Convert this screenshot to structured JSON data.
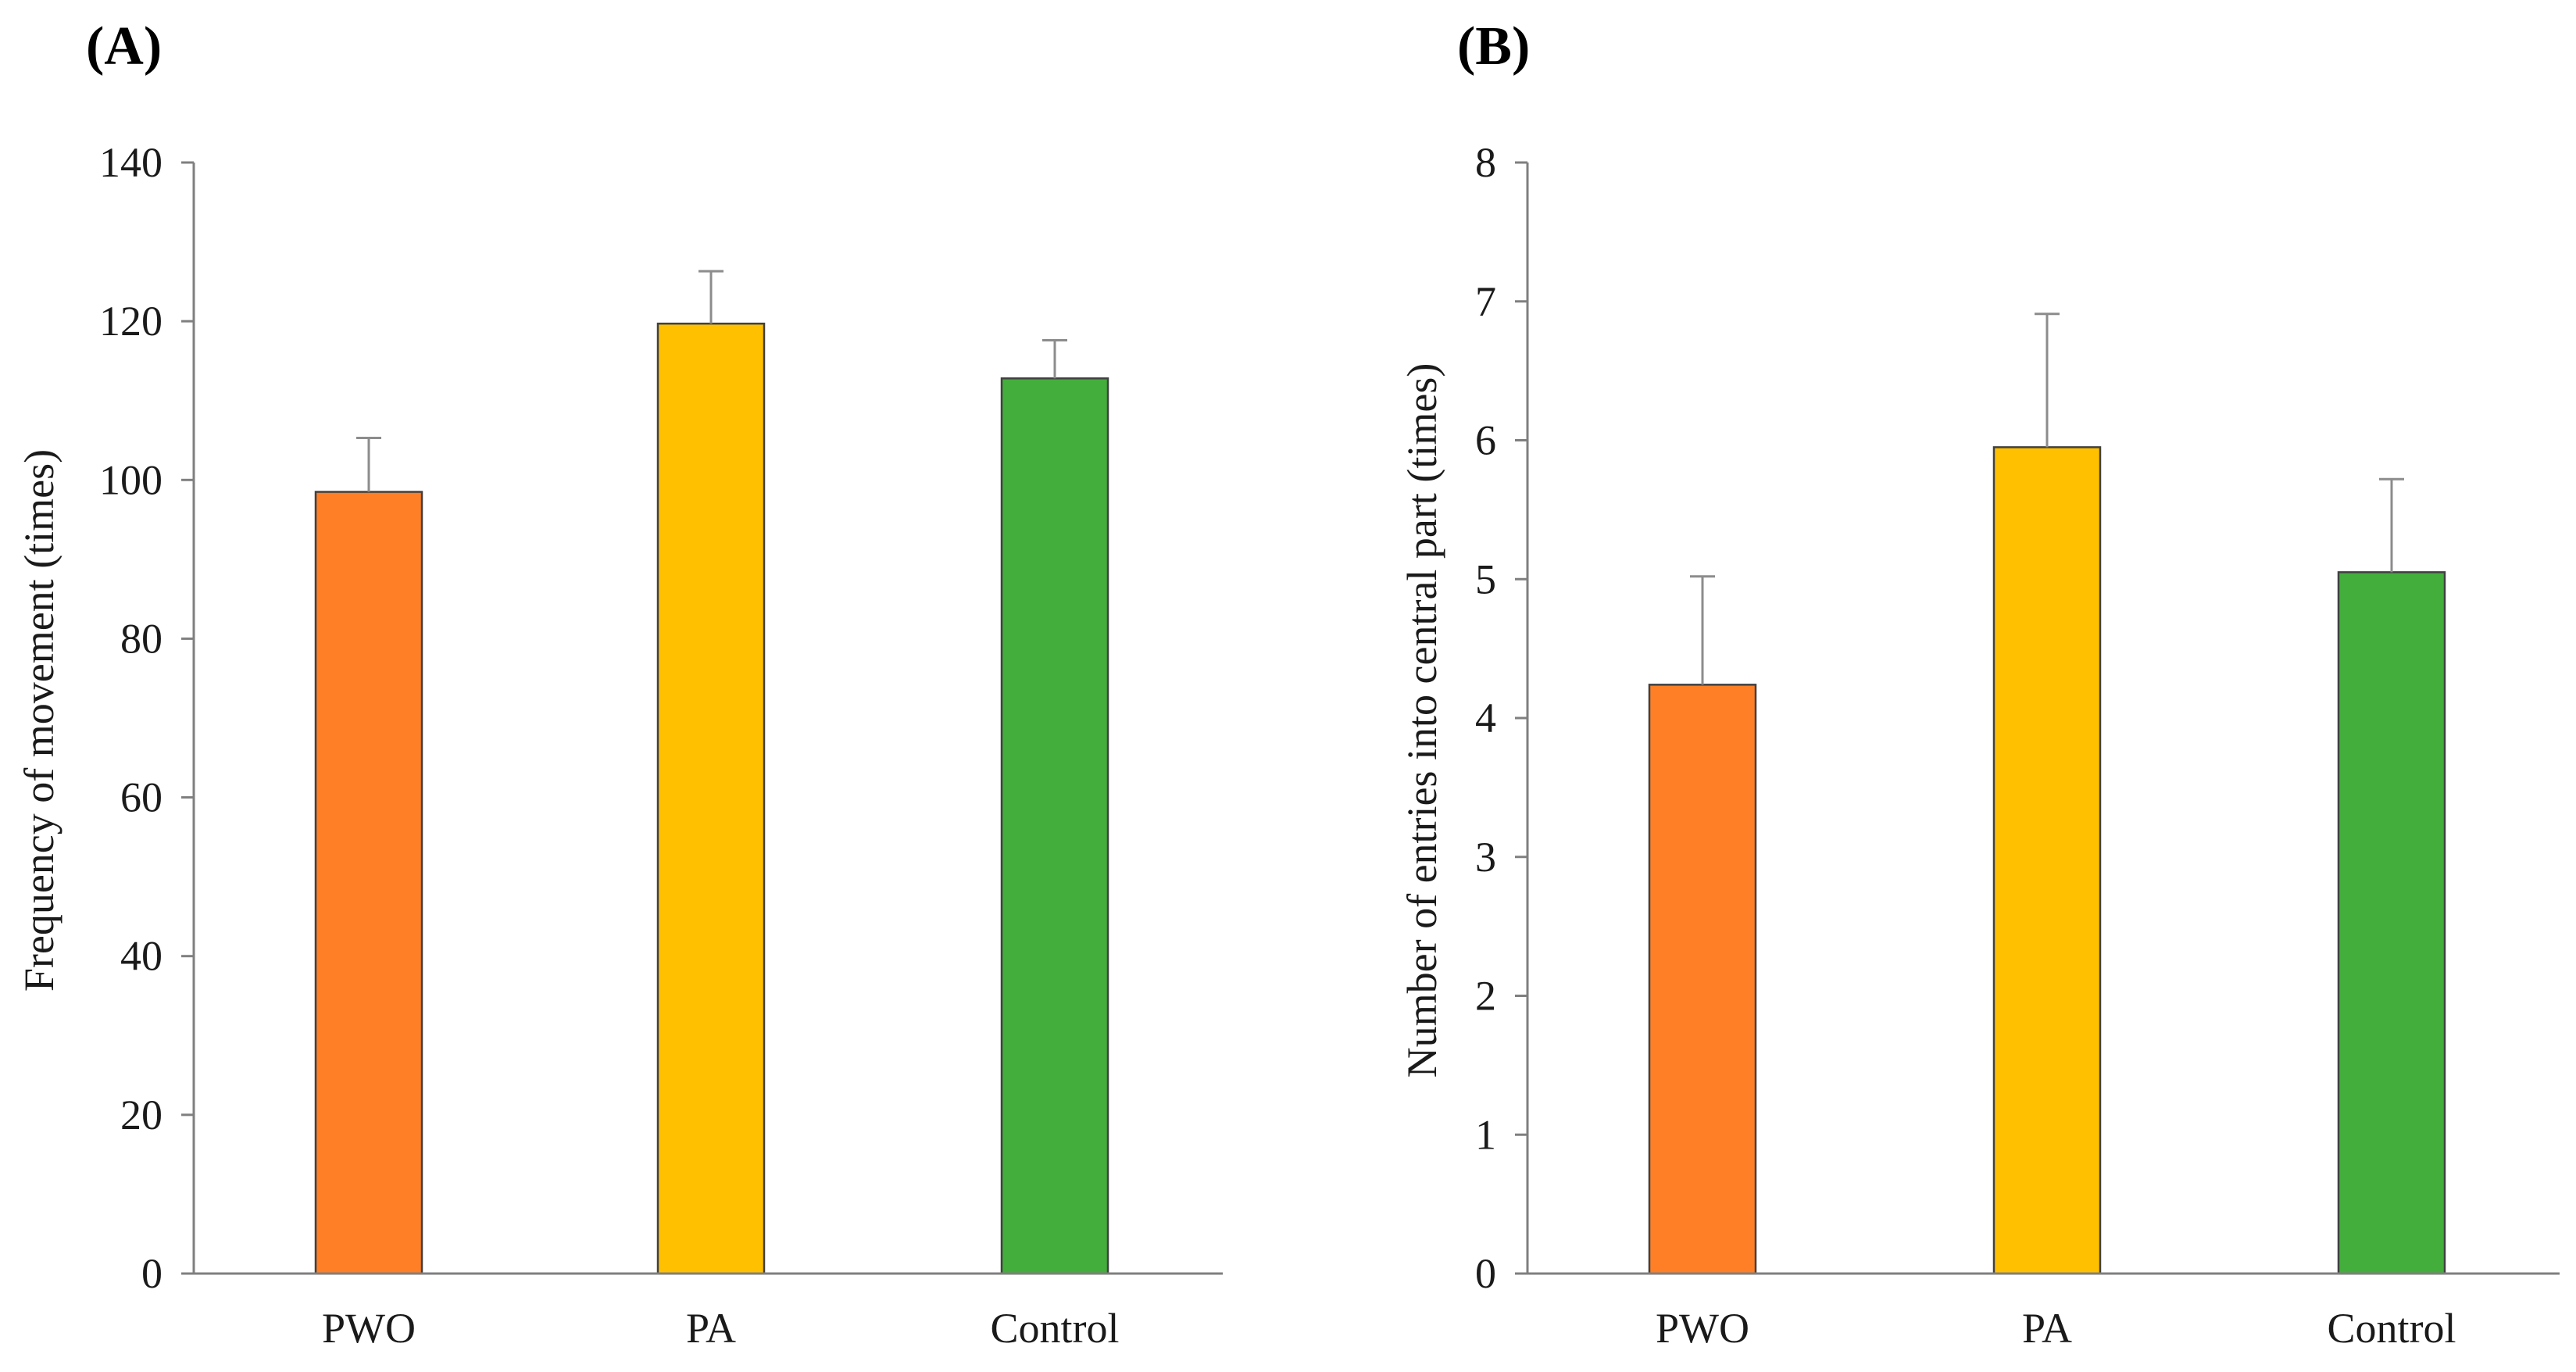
{
  "chart_data": [
    {
      "type": "bar",
      "panel_label": "(A)",
      "categories": [
        "PWO",
        "PA",
        "Control"
      ],
      "values": [
        98.5,
        119.7,
        112.8
      ],
      "errors": [
        6.8,
        6.6,
        4.8
      ],
      "colors": [
        "#ff7f27",
        "#ffc000",
        "#43ae3b"
      ],
      "ylabel": "Frequency of movement (times)",
      "xlabel": "",
      "ylim": [
        0,
        140
      ],
      "yticks": [
        "0",
        "20",
        "40",
        "60",
        "80",
        "100",
        "120",
        "140"
      ],
      "grid": false
    },
    {
      "type": "bar",
      "panel_label": "(B)",
      "categories": [
        "PWO",
        "PA",
        "Control"
      ],
      "values": [
        4.24,
        5.95,
        5.05
      ],
      "errors": [
        0.78,
        0.96,
        0.67
      ],
      "colors": [
        "#ff7f27",
        "#ffc000",
        "#43ae3b"
      ],
      "ylabel": "Number of entries into central part (times)",
      "xlabel": "",
      "ylim": [
        0,
        8
      ],
      "yticks": [
        "0",
        "1",
        "2",
        "3",
        "4",
        "5",
        "6",
        "7",
        "8"
      ],
      "grid": false
    }
  ]
}
